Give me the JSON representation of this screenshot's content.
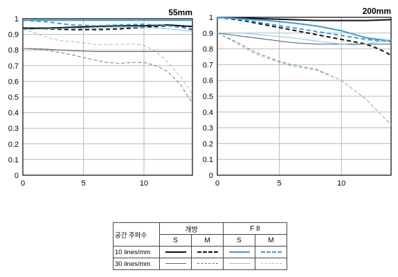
{
  "chart_data": [
    {
      "type": "line",
      "title": "55mm",
      "xlim": [
        0,
        14
      ],
      "ylim": [
        0,
        1
      ],
      "xticks": [
        "0",
        "5",
        "10"
      ],
      "yticks": [
        "0",
        "0.1",
        "0.2",
        "0.3",
        "0.4",
        "0.5",
        "0.6",
        "0.7",
        "0.8",
        "0.9",
        "1"
      ],
      "grid": true,
      "series": [
        {
          "key": "open_10_S",
          "color": "#111111",
          "dash": "solid",
          "width": 2,
          "x": [
            0,
            2,
            4,
            6,
            8,
            10,
            12,
            14
          ],
          "y": [
            0.94,
            0.94,
            0.945,
            0.95,
            0.955,
            0.955,
            0.96,
            0.95
          ]
        },
        {
          "key": "open_10_M",
          "color": "#111111",
          "dash": "dash",
          "width": 2,
          "x": [
            0,
            2,
            4,
            6,
            8,
            10,
            12,
            13,
            14
          ],
          "y": [
            0.94,
            0.935,
            0.93,
            0.93,
            0.935,
            0.945,
            0.955,
            0.95,
            0.93
          ]
        },
        {
          "key": "open_30_S",
          "color": "#555555",
          "dash": "solid",
          "width": 1,
          "x": [
            0,
            2,
            4,
            6,
            8,
            10,
            12,
            14
          ],
          "y": [
            0.81,
            0.805,
            0.795,
            0.79,
            0.79,
            0.79,
            0.79,
            0.79
          ]
        },
        {
          "key": "open_30_M",
          "color": "#777777",
          "dash": "dash",
          "width": 1,
          "x": [
            0,
            2,
            4,
            6,
            7,
            8,
            9,
            10,
            11,
            12,
            13,
            14
          ],
          "y": [
            0.81,
            0.8,
            0.77,
            0.735,
            0.72,
            0.715,
            0.72,
            0.72,
            0.7,
            0.66,
            0.58,
            0.46
          ]
        },
        {
          "key": "f8_10_S",
          "color": "#3a9ad9",
          "dash": "solid",
          "width": 2,
          "x": [
            0,
            2,
            4,
            6,
            8,
            10,
            12,
            14
          ],
          "y": [
            0.99,
            0.99,
            0.99,
            0.99,
            0.99,
            0.99,
            0.99,
            0.99
          ]
        },
        {
          "key": "f8_10_M",
          "color": "#3a9ad9",
          "dash": "dash",
          "width": 2,
          "x": [
            0,
            2,
            4,
            6,
            8,
            10,
            12,
            14
          ],
          "y": [
            0.99,
            0.98,
            0.96,
            0.955,
            0.96,
            0.965,
            0.955,
            0.935
          ]
        },
        {
          "key": "f8_30_S",
          "color": "#80c4ec",
          "dash": "solid",
          "width": 1,
          "x": [
            0,
            2,
            4,
            6,
            8,
            10,
            12,
            14
          ],
          "y": [
            0.93,
            0.935,
            0.94,
            0.94,
            0.945,
            0.945,
            0.935,
            0.92
          ]
        },
        {
          "key": "f8_30_M",
          "color": "#80c4ec",
          "dash": "dash",
          "width": 1,
          "x": [
            0,
            1,
            2,
            3,
            4,
            6,
            8,
            9,
            10,
            11,
            12,
            13,
            14
          ],
          "y": [
            0.93,
            0.91,
            0.88,
            0.86,
            0.855,
            0.835,
            0.835,
            0.84,
            0.83,
            0.79,
            0.72,
            0.63,
            0.52
          ]
        }
      ]
    },
    {
      "type": "line",
      "title": "200mm",
      "xlim": [
        0,
        14
      ],
      "ylim": [
        0,
        1
      ],
      "xticks": [
        "0",
        "5",
        "10"
      ],
      "yticks": [
        "0",
        "0.1",
        "0.2",
        "0.3",
        "0.4",
        "0.5",
        "0.6",
        "0.7",
        "0.8",
        "0.9",
        "1"
      ],
      "grid": true,
      "series": [
        {
          "key": "open_10_S",
          "color": "#111111",
          "dash": "solid",
          "width": 2,
          "x": [
            0,
            2,
            4,
            6,
            8,
            10,
            12,
            14
          ],
          "y": [
            1.0,
            0.995,
            0.99,
            0.985,
            0.98,
            0.98,
            0.98,
            0.985
          ]
        },
        {
          "key": "open_10_M",
          "color": "#111111",
          "dash": "dash",
          "width": 2,
          "x": [
            0,
            2,
            4,
            6,
            8,
            10,
            12,
            13,
            14
          ],
          "y": [
            1.0,
            0.98,
            0.95,
            0.92,
            0.89,
            0.86,
            0.83,
            0.8,
            0.76
          ]
        },
        {
          "key": "open_30_S",
          "color": "#555555",
          "dash": "solid",
          "width": 1,
          "x": [
            0,
            2,
            4,
            6,
            8,
            10,
            12,
            14
          ],
          "y": [
            0.9,
            0.88,
            0.86,
            0.84,
            0.83,
            0.83,
            0.83,
            0.83
          ]
        },
        {
          "key": "open_30_M",
          "color": "#777777",
          "dash": "dash",
          "width": 1,
          "x": [
            0,
            1,
            2,
            3,
            4,
            5,
            6,
            8,
            10,
            12,
            14
          ],
          "y": [
            0.9,
            0.865,
            0.825,
            0.78,
            0.75,
            0.72,
            0.7,
            0.67,
            0.6,
            0.48,
            0.32
          ]
        },
        {
          "key": "f8_10_S",
          "color": "#3a9ad9",
          "dash": "solid",
          "width": 2,
          "x": [
            0,
            2,
            4,
            6,
            8,
            10,
            12,
            14
          ],
          "y": [
            1.0,
            0.99,
            0.98,
            0.965,
            0.945,
            0.915,
            0.87,
            0.85
          ]
        },
        {
          "key": "f8_10_M",
          "color": "#3a9ad9",
          "dash": "dash",
          "width": 2,
          "x": [
            0,
            2,
            4,
            6,
            8,
            10,
            12,
            14
          ],
          "y": [
            1.0,
            0.985,
            0.96,
            0.935,
            0.91,
            0.885,
            0.86,
            0.845
          ]
        },
        {
          "key": "f8_30_S",
          "color": "#80c4ec",
          "dash": "solid",
          "width": 1,
          "x": [
            0,
            2,
            4,
            6,
            8,
            10,
            11,
            12,
            14
          ],
          "y": [
            0.9,
            0.9,
            0.885,
            0.87,
            0.85,
            0.83,
            0.825,
            0.83,
            0.86
          ]
        },
        {
          "key": "f8_30_M",
          "color": "#80c4ec",
          "dash": "dash",
          "width": 1,
          "x": [
            0,
            1,
            2,
            3,
            4,
            6,
            8,
            10,
            12,
            14
          ],
          "y": [
            0.9,
            0.86,
            0.815,
            0.77,
            0.74,
            0.69,
            0.665,
            0.6,
            0.48,
            0.32
          ]
        }
      ]
    }
  ],
  "legend": {
    "header": "공간 주파수",
    "group_open": "개방",
    "group_f8": "F 8",
    "sub_s": "S",
    "sub_m": "M",
    "row_10": "10 lines/mm",
    "row_30": "30 lines/mm",
    "colors": {
      "open_10": "#111111",
      "open_30": "#666666",
      "f8_10": "#3a9ad9",
      "f8_30": "#80c4ec"
    }
  }
}
